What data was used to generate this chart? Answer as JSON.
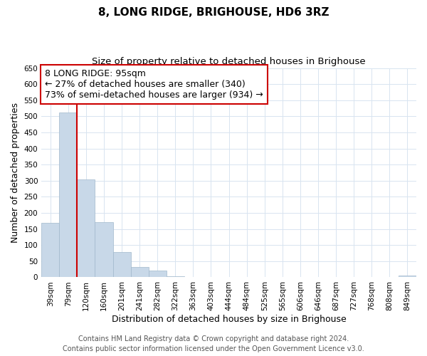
{
  "title": "8, LONG RIDGE, BRIGHOUSE, HD6 3RZ",
  "subtitle": "Size of property relative to detached houses in Brighouse",
  "xlabel": "Distribution of detached houses by size in Brighouse",
  "ylabel": "Number of detached properties",
  "bin_labels": [
    "39sqm",
    "79sqm",
    "120sqm",
    "160sqm",
    "201sqm",
    "241sqm",
    "282sqm",
    "322sqm",
    "363sqm",
    "403sqm",
    "444sqm",
    "484sqm",
    "525sqm",
    "565sqm",
    "606sqm",
    "646sqm",
    "687sqm",
    "727sqm",
    "768sqm",
    "808sqm",
    "849sqm"
  ],
  "bar_heights": [
    168,
    513,
    305,
    171,
    79,
    33,
    20,
    4,
    1,
    0,
    0,
    0,
    0,
    0,
    0,
    0,
    0,
    0,
    0,
    0,
    5
  ],
  "bar_color": "#c8d8e8",
  "bar_edge_color": "#a0b8cc",
  "vline_x_index": 1.5,
  "vline_color": "#cc0000",
  "annotation_line1": "8 LONG RIDGE: 95sqm",
  "annotation_line2": "← 27% of detached houses are smaller (340)",
  "annotation_line3": "73% of semi-detached houses are larger (934) →",
  "annotation_box_color": "#ffffff",
  "annotation_box_edge_color": "#cc0000",
  "ylim": [
    0,
    650
  ],
  "yticks": [
    0,
    50,
    100,
    150,
    200,
    250,
    300,
    350,
    400,
    450,
    500,
    550,
    600,
    650
  ],
  "grid_color": "#d8e4f0",
  "footer_line1": "Contains HM Land Registry data © Crown copyright and database right 2024.",
  "footer_line2": "Contains public sector information licensed under the Open Government Licence v3.0.",
  "title_fontsize": 11,
  "subtitle_fontsize": 9.5,
  "xlabel_fontsize": 9,
  "ylabel_fontsize": 9,
  "tick_fontsize": 7.5,
  "annotation_fontsize": 9,
  "footer_fontsize": 7
}
